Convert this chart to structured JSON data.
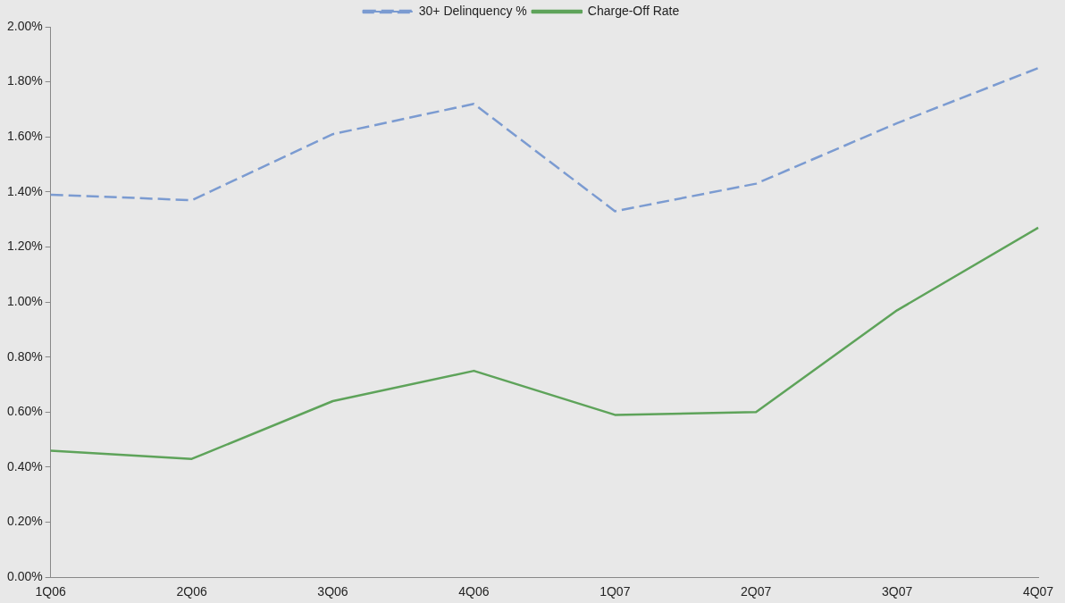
{
  "chart_data": {
    "type": "line",
    "categories": [
      "1Q06",
      "2Q06",
      "3Q06",
      "4Q06",
      "1Q07",
      "2Q07",
      "3Q07",
      "4Q07"
    ],
    "series": [
      {
        "name": "30+ Delinquency %",
        "color": "#7b9bd1",
        "line_style": "dashed",
        "values": [
          1.39,
          1.37,
          1.61,
          1.72,
          1.33,
          1.43,
          1.65,
          1.85
        ]
      },
      {
        "name": "Charge-Off Rate",
        "color": "#5ea35a",
        "line_style": "solid",
        "values": [
          0.46,
          0.43,
          0.64,
          0.75,
          0.59,
          0.6,
          0.97,
          1.27
        ]
      }
    ],
    "ylim": [
      0,
      2
    ],
    "yticks": [
      {
        "value": 0,
        "label": "0.00%"
      },
      {
        "value": 0.2,
        "label": "0.20%"
      },
      {
        "value": 0.4,
        "label": "0.40%"
      },
      {
        "value": 0.6,
        "label": "0.60%"
      },
      {
        "value": 0.8,
        "label": "0.80%"
      },
      {
        "value": 1,
        "label": "1.00%"
      },
      {
        "value": 1.2,
        "label": "1.20%"
      },
      {
        "value": 1.4,
        "label": "1.40%"
      },
      {
        "value": 1.6,
        "label": "1.60%"
      },
      {
        "value": 1.8,
        "label": "1.80%"
      },
      {
        "value": 2,
        "label": "2.00%"
      }
    ],
    "grid": false,
    "legend": "top",
    "marker": "none"
  }
}
